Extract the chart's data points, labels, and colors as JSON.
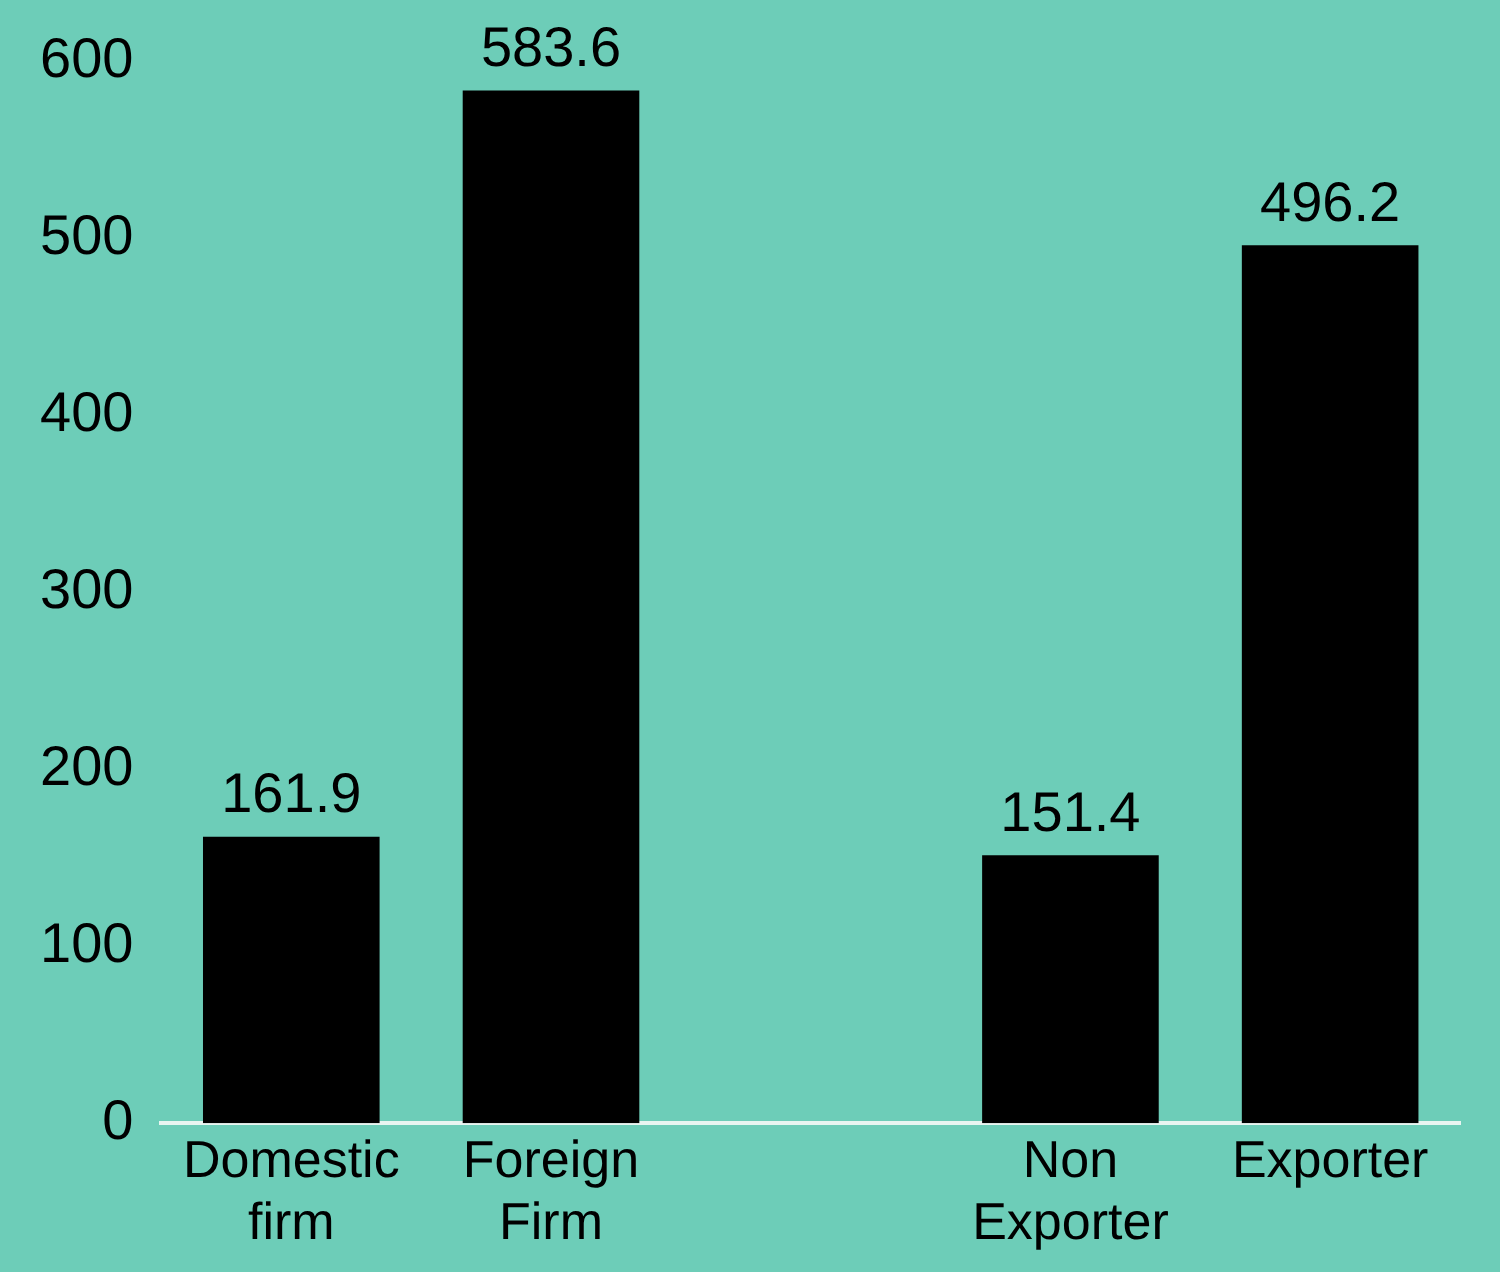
{
  "chart_data": {
    "type": "bar",
    "categories": [
      "Domestic firm",
      "Foreign Firm",
      null,
      "Non Exporter",
      "Exporter"
    ],
    "values": [
      161.9,
      583.6,
      null,
      151.4,
      496.2
    ],
    "color": "#000000",
    "ylim": [
      0,
      600
    ],
    "yticks": [
      0,
      100,
      200,
      300,
      400,
      500,
      600
    ],
    "grid": false,
    "legend": false,
    "data_labels": true
  }
}
